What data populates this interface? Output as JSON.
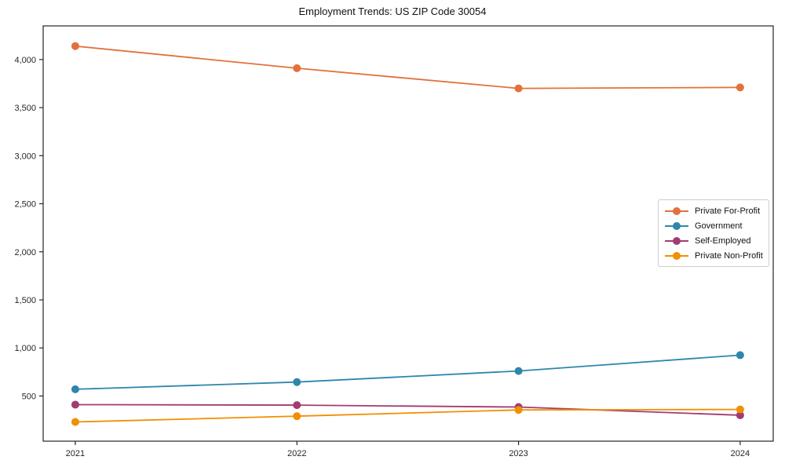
{
  "title": "Employment Trends: US ZIP Code 30054",
  "chart_data": {
    "type": "line",
    "title": "Employment Trends: US ZIP Code 30054",
    "xlabel": "",
    "ylabel": "",
    "x": [
      "2021",
      "2022",
      "2023",
      "2024"
    ],
    "series": [
      {
        "name": "Private For-Profit",
        "color": "#E2713B",
        "values": [
          4140,
          3910,
          3700,
          3710
        ]
      },
      {
        "name": "Government",
        "color": "#2E86AB",
        "values": [
          570,
          645,
          760,
          925
        ]
      },
      {
        "name": "Self-Employed",
        "color": "#A23B72",
        "values": [
          410,
          405,
          385,
          300
        ]
      },
      {
        "name": "Private Non-Profit",
        "color": "#F18F01",
        "values": [
          230,
          290,
          355,
          360
        ]
      }
    ],
    "yticks": [
      500,
      1000,
      1500,
      2000,
      2500,
      3000,
      3500,
      4000
    ],
    "ylim": [
      30,
      4350
    ],
    "grid": false,
    "legend_position": "right-middle",
    "marker": "circle",
    "axis_color": "#262626"
  }
}
